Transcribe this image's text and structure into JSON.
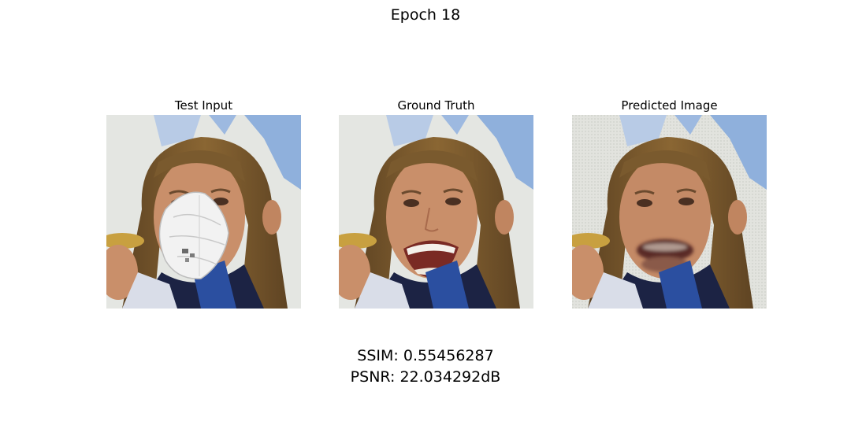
{
  "figure": {
    "title": "Epoch 18"
  },
  "panels": [
    {
      "title": "Test Input"
    },
    {
      "title": "Ground Truth"
    },
    {
      "title": "Predicted Image"
    }
  ],
  "metrics": {
    "ssim": "SSIM: 0.55456287",
    "psnr": "PSNR: 22.034292dB"
  },
  "colors": {
    "background_wall": "#e4e6e2",
    "banner_blue": "#8fb0dc",
    "hair": "#7a5a2e",
    "skin": "#c98f6a",
    "mask": "#f2f2f2",
    "mouth_open": "#7a2a24",
    "teeth": "#f4f0ea",
    "jacket_navy": "#1c2344",
    "medal_gold": "#c8a040"
  }
}
